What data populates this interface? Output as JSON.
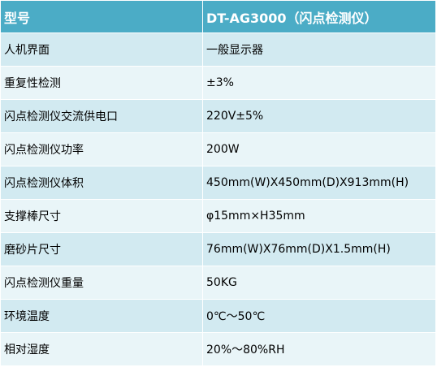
{
  "table": {
    "header": [
      "型号",
      "DT-AG3000（闪点检测仪）"
    ],
    "rows": [
      [
        "人机界面",
        "一般显示器"
      ],
      [
        "重复性检测",
        "±3%"
      ],
      [
        "闪点检测仪交流供电口",
        "220V±5%"
      ],
      [
        "闪点检测仪功率",
        "200W"
      ],
      [
        "闪点检测仪体积",
        "450mm(W)X450mm(D)X913mm(H)"
      ],
      [
        "支撑棒尺寸",
        "φ15mm×H35mm"
      ],
      [
        "磨砂片尺寸",
        "76mm(W)X76mm(D)X1.5mm(H)"
      ],
      [
        "闪点检测仪重量",
        "50KG"
      ],
      [
        "环境温度",
        "0℃～50℃"
      ],
      [
        "相对湿度",
        "20%～80%RH"
      ]
    ]
  },
  "colors": {
    "header_bg": "#4bacc6",
    "row_odd_bg": "#d2eaf1",
    "row_even_bg": "#e9f5f8"
  }
}
